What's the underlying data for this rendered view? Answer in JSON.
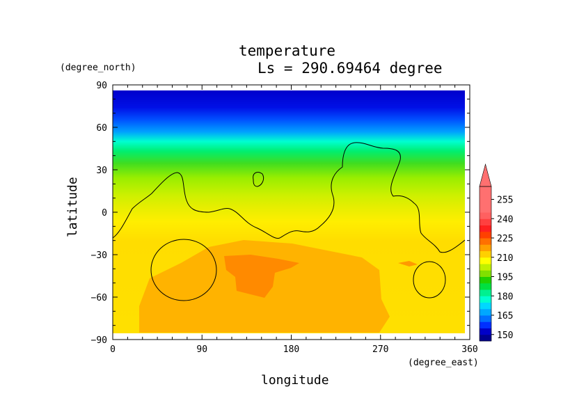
{
  "chart_data": {
    "type": "heatmap",
    "title": "temperature",
    "subtitle": "Ls = 290.69464 degree",
    "xlabel": "longitude",
    "ylabel": "latitude",
    "x_units": "(degree_east)",
    "y_units": "(degree_north)",
    "xlim": [
      0,
      360
    ],
    "ylim": [
      -90,
      90
    ],
    "x_ticks": [
      "0",
      "90",
      "180",
      "270",
      "360"
    ],
    "y_ticks": [
      "90",
      "60",
      "30",
      "0",
      "−30",
      "−60",
      "−90"
    ],
    "colorbar": {
      "labels": [
        "255",
        "240",
        "225",
        "210",
        "195",
        "180",
        "165",
        "150"
      ],
      "levels": [
        150,
        165,
        180,
        195,
        210,
        225,
        240,
        255
      ],
      "min": 145,
      "max": 265,
      "extend": "max"
    }
  }
}
